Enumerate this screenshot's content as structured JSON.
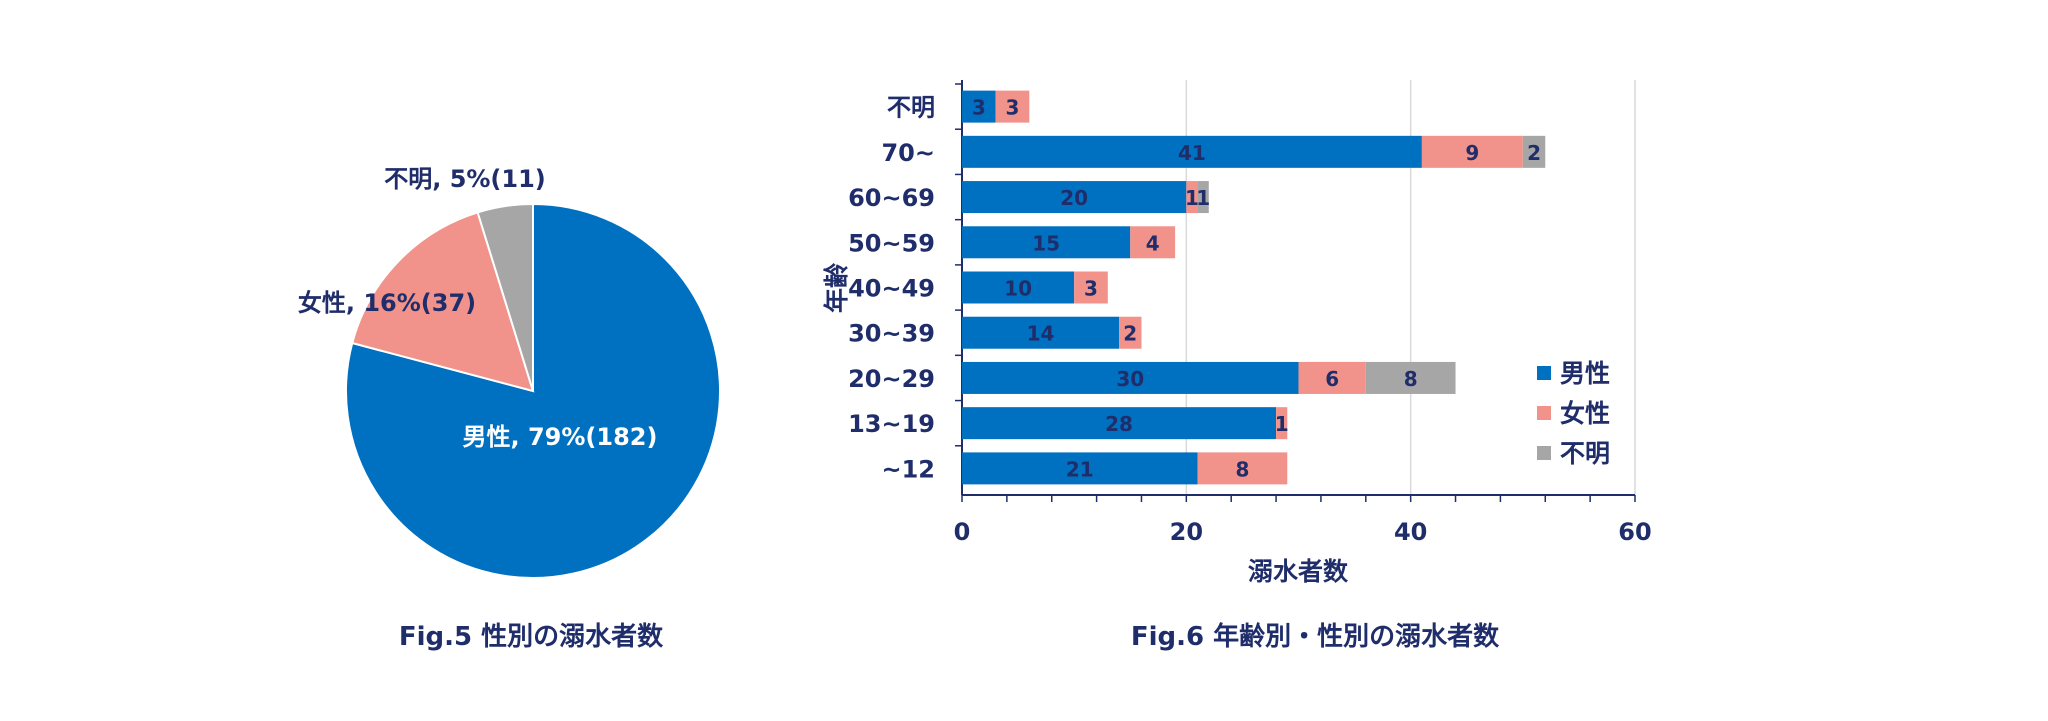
{
  "colors": {
    "male": "#0070c0",
    "female": "#f1938a",
    "unknown": "#a6a6a6",
    "text": "#1f2d6b",
    "grid": "#d9d9d9",
    "axis": "#1f2d6b"
  },
  "captions": {
    "fig5": "Fig.5 性別の溺水者数",
    "fig6": "Fig.6 年齢別・性別の溺水者数"
  },
  "chart_data": [
    {
      "type": "pie",
      "title": "Fig.5 性別の溺水者数",
      "slices": [
        {
          "name": "男性",
          "label": "男性, 79%(182)",
          "value": 182,
          "percent": 79,
          "color": "#0070c0"
        },
        {
          "name": "女性",
          "label": "女性, 16%(37)",
          "value": 37,
          "percent": 16,
          "color": "#f1938a"
        },
        {
          "name": "不明",
          "label": "不明, 5%(11)",
          "value": 11,
          "percent": 5,
          "color": "#a6a6a6"
        }
      ]
    },
    {
      "type": "bar",
      "orientation": "horizontal",
      "stacked": true,
      "title": "Fig.6 年齢別・性別の溺水者数",
      "xlabel": "溺水者数",
      "ylabel": "年齢",
      "xlim": [
        0,
        60
      ],
      "xticks": [
        0,
        20,
        40,
        60
      ],
      "grid": true,
      "legend_position": "right",
      "categories": [
        "不明",
        "70~",
        "60~69",
        "50~59",
        "40~49",
        "30~39",
        "20~29",
        "13~19",
        "~12"
      ],
      "series": [
        {
          "name": "男性",
          "color": "#0070c0",
          "values": [
            3,
            41,
            20,
            15,
            10,
            14,
            30,
            28,
            21
          ]
        },
        {
          "name": "女性",
          "color": "#f1938a",
          "values": [
            3,
            9,
            1,
            4,
            3,
            2,
            6,
            1,
            8
          ]
        },
        {
          "name": "不明",
          "color": "#a6a6a6",
          "values": [
            0,
            2,
            1,
            0,
            0,
            0,
            8,
            0,
            0
          ]
        }
      ]
    }
  ]
}
